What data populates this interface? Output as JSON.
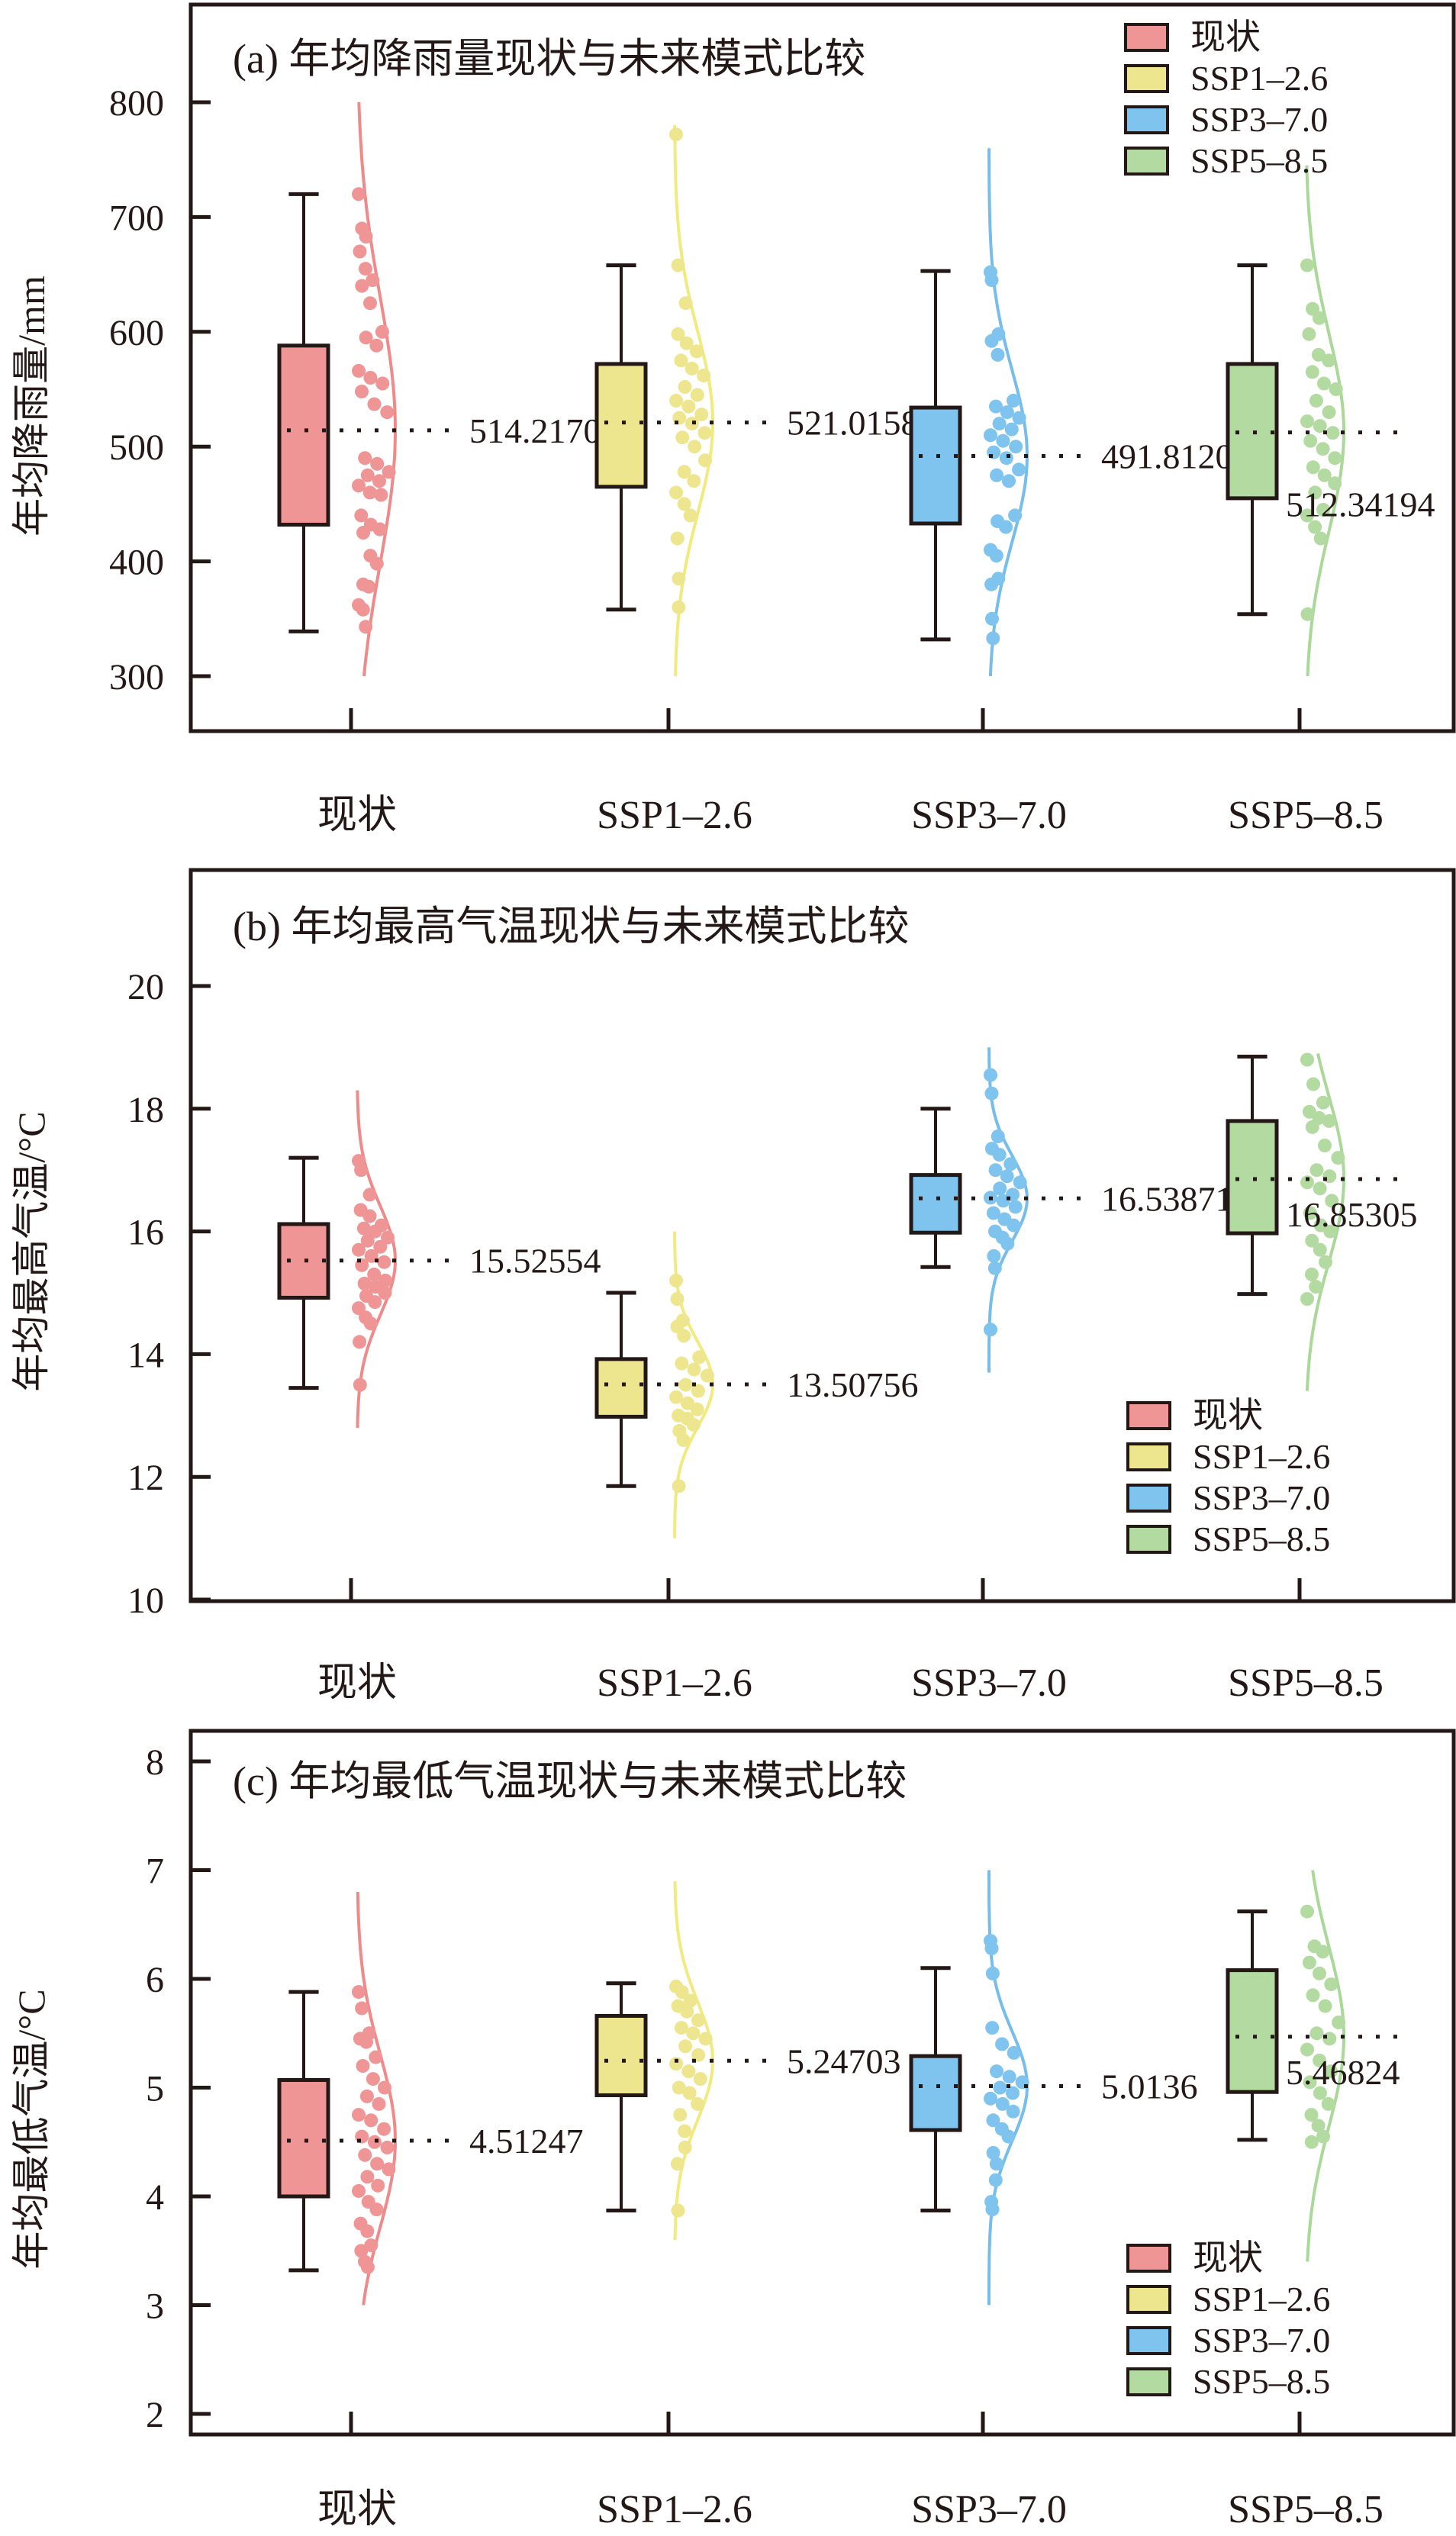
{
  "figure": {
    "legend_labels": [
      "现状",
      "SSP1–2.6",
      "SSP3–7.0",
      "SSP5–8.5"
    ],
    "colors": {
      "现状": {
        "fill": "#f09595",
        "line": "#f08a8a"
      },
      "SSP1–2.6": {
        "fill": "#ede68f",
        "line": "#f1ea7e"
      },
      "SSP3–7.0": {
        "fill": "#7ec4ef",
        "line": "#76bdeb"
      },
      "SSP5–8.5": {
        "fill": "#b3dba1",
        "line": "#a9d898"
      }
    }
  },
  "chart_data": [
    {
      "type": "box",
      "panel": "a",
      "title": "(a) 年均降雨量现状与未来模式比较",
      "xlabel": "",
      "ylabel": "年均降雨量/mm",
      "categories": [
        "现状",
        "SSP1–2.6",
        "SSP3–7.0",
        "SSP5–8.5"
      ],
      "ylim": [
        250,
        830
      ],
      "yticks": [
        300,
        400,
        500,
        600,
        700,
        800
      ],
      "legend_position": "top-right",
      "series": [
        {
          "name": "现状",
          "whisker_low": 339,
          "q1": 432,
          "median": 514,
          "q3": 588,
          "whisker_high": 720,
          "mean": 514.21702,
          "mean_label": "514.21702",
          "points": [
            720,
            690,
            683,
            670,
            655,
            645,
            640,
            625,
            600,
            595,
            588,
            566,
            560,
            555,
            548,
            537,
            530,
            490,
            485,
            478,
            475,
            470,
            466,
            460,
            458,
            440,
            432,
            428,
            425,
            405,
            398,
            380,
            378,
            362,
            358,
            343
          ],
          "density_range": [
            300,
            800
          ]
        },
        {
          "name": "SSP1–2.6",
          "whisker_low": 358,
          "q1": 465,
          "median": 521,
          "q3": 572,
          "whisker_high": 658,
          "mean": 521.0158,
          "mean_label": "521.0158",
          "points": [
            772,
            658,
            625,
            598,
            590,
            583,
            575,
            568,
            562,
            552,
            545,
            540,
            535,
            528,
            525,
            520,
            512,
            508,
            500,
            488,
            478,
            470,
            460,
            450,
            440,
            420,
            385,
            360
          ],
          "density_range": [
            300,
            780
          ]
        },
        {
          "name": "SSP3–7.0",
          "whisker_low": 332,
          "q1": 433,
          "median": 492,
          "q3": 534,
          "whisker_high": 653,
          "mean": 491.81202,
          "mean_label": "491.81202",
          "points": [
            652,
            645,
            598,
            592,
            580,
            540,
            535,
            530,
            525,
            520,
            515,
            510,
            505,
            500,
            495,
            490,
            480,
            475,
            470,
            440,
            435,
            430,
            410,
            405,
            385,
            380,
            350,
            333
          ],
          "density_range": [
            300,
            760
          ]
        },
        {
          "name": "SSP5–8.5",
          "whisker_low": 354,
          "q1": 455,
          "median": 512,
          "q3": 572,
          "whisker_high": 658,
          "mean": 512.34194,
          "mean_label": "512.34194",
          "points": [
            658,
            620,
            612,
            598,
            580,
            575,
            565,
            555,
            550,
            540,
            530,
            522,
            518,
            512,
            505,
            498,
            490,
            482,
            475,
            468,
            460,
            445,
            440,
            430,
            420,
            354
          ],
          "density_range": [
            300,
            745
          ]
        }
      ]
    },
    {
      "type": "box",
      "panel": "b",
      "title": "(b) 年均最高气温现状与未来模式比较",
      "xlabel": "",
      "ylabel": "年均最高气温/°C",
      "categories": [
        "现状",
        "SSP1–2.6",
        "SSP3–7.0",
        "SSP5–8.5"
      ],
      "ylim": [
        10,
        22
      ],
      "yticks": [
        10,
        12,
        14,
        16,
        18,
        20
      ],
      "legend_position": "bottom-right",
      "series": [
        {
          "name": "现状",
          "whisker_low": 13.45,
          "q1": 14.92,
          "median": 15.52,
          "q3": 16.12,
          "whisker_high": 17.2,
          "mean": 15.52554,
          "mean_label": "15.52554",
          "points": [
            17.15,
            17.0,
            16.6,
            16.35,
            16.25,
            16.1,
            16.05,
            16.0,
            15.9,
            15.85,
            15.75,
            15.7,
            15.6,
            15.5,
            15.45,
            15.3,
            15.2,
            15.15,
            15.1,
            15.0,
            14.95,
            14.85,
            14.75,
            14.6,
            14.5,
            14.2,
            13.5
          ],
          "density_range": [
            12.8,
            18.3
          ]
        },
        {
          "name": "SSP1–2.6",
          "whisker_low": 11.85,
          "q1": 12.98,
          "median": 13.5,
          "q3": 13.92,
          "whisker_high": 15.0,
          "mean": 13.50756,
          "mean_label": "13.50756",
          "points": [
            15.2,
            14.9,
            14.55,
            14.45,
            14.3,
            13.95,
            13.85,
            13.75,
            13.65,
            13.5,
            13.4,
            13.3,
            13.2,
            13.1,
            13.0,
            12.95,
            12.85,
            12.75,
            12.6,
            11.85
          ],
          "density_range": [
            11.0,
            16.0
          ]
        },
        {
          "name": "SSP3–7.0",
          "whisker_low": 15.42,
          "q1": 15.98,
          "median": 16.54,
          "q3": 16.92,
          "whisker_high": 18.0,
          "mean": 16.53871,
          "mean_label": "16.53871",
          "points": [
            18.55,
            18.25,
            17.55,
            17.35,
            17.25,
            17.1,
            17.0,
            16.9,
            16.8,
            16.7,
            16.6,
            16.55,
            16.5,
            16.4,
            16.3,
            16.2,
            16.1,
            16.0,
            15.9,
            15.8,
            15.6,
            15.4,
            14.4
          ],
          "density_range": [
            13.7,
            19.0
          ]
        },
        {
          "name": "SSP5–8.5",
          "whisker_low": 14.98,
          "q1": 15.97,
          "median": 16.85,
          "q3": 17.8,
          "whisker_high": 18.85,
          "mean": 16.85305,
          "mean_label": "16.85305",
          "points": [
            18.8,
            18.4,
            18.1,
            17.95,
            17.85,
            17.8,
            17.7,
            17.4,
            17.2,
            17.0,
            16.9,
            16.8,
            16.7,
            16.5,
            16.3,
            16.1,
            16.0,
            15.85,
            15.7,
            15.5,
            15.3,
            15.1,
            14.9
          ],
          "density_range": [
            13.4,
            18.9
          ]
        }
      ]
    },
    {
      "type": "box",
      "panel": "c",
      "title": "(c) 年均最低气温现状与未来模式比较",
      "xlabel": "",
      "ylabel": "年均最低气温/°C",
      "categories": [
        "现状",
        "SSP1–2.6",
        "SSP3–7.0",
        "SSP5–8.5"
      ],
      "ylim": [
        1.7,
        8.3
      ],
      "yticks": [
        2,
        3,
        4,
        5,
        6,
        7,
        8
      ],
      "legend_position": "bottom-right",
      "series": [
        {
          "name": "现状",
          "whisker_low": 3.32,
          "q1": 4.0,
          "median": 4.51,
          "q3": 5.07,
          "whisker_high": 5.88,
          "mean": 4.51247,
          "mean_label": "4.51247",
          "points": [
            5.88,
            5.73,
            5.5,
            5.45,
            5.42,
            5.28,
            5.2,
            5.08,
            5.0,
            4.92,
            4.85,
            4.75,
            4.7,
            4.62,
            4.55,
            4.5,
            4.45,
            4.38,
            4.3,
            4.25,
            4.18,
            4.1,
            4.05,
            3.95,
            3.88,
            3.75,
            3.68,
            3.55,
            3.5,
            3.4,
            3.35
          ],
          "density_range": [
            3.0,
            6.8
          ]
        },
        {
          "name": "SSP1–2.6",
          "whisker_low": 3.87,
          "q1": 4.93,
          "median": 5.25,
          "q3": 5.66,
          "whisker_high": 5.96,
          "mean": 5.24703,
          "mean_label": "5.24703",
          "points": [
            5.93,
            5.88,
            5.8,
            5.75,
            5.7,
            5.62,
            5.55,
            5.5,
            5.45,
            5.38,
            5.3,
            5.22,
            5.15,
            5.08,
            5.0,
            4.95,
            4.85,
            4.75,
            4.6,
            4.45,
            4.3,
            3.87
          ],
          "density_range": [
            3.6,
            6.9
          ]
        },
        {
          "name": "SSP3–7.0",
          "whisker_low": 3.87,
          "q1": 4.61,
          "median": 5.01,
          "q3": 5.29,
          "whisker_high": 6.1,
          "mean": 5.0136,
          "mean_label": "5.0136",
          "points": [
            6.35,
            6.28,
            6.05,
            5.55,
            5.4,
            5.32,
            5.15,
            5.1,
            5.05,
            5.0,
            4.95,
            4.9,
            4.85,
            4.78,
            4.7,
            4.62,
            4.55,
            4.4,
            4.3,
            4.15,
            3.95,
            3.88
          ],
          "density_range": [
            3.0,
            7.0
          ]
        },
        {
          "name": "SSP5–8.5",
          "whisker_low": 4.52,
          "q1": 4.96,
          "median": 5.47,
          "q3": 6.08,
          "whisker_high": 6.62,
          "mean": 5.46824,
          "mean_label": "5.46824",
          "points": [
            6.62,
            6.3,
            6.25,
            6.15,
            6.05,
            5.95,
            5.85,
            5.75,
            5.6,
            5.5,
            5.45,
            5.35,
            5.25,
            5.15,
            5.05,
            4.95,
            4.85,
            4.75,
            4.65,
            4.55,
            4.5
          ],
          "density_range": [
            3.4,
            7.0
          ]
        }
      ]
    }
  ]
}
